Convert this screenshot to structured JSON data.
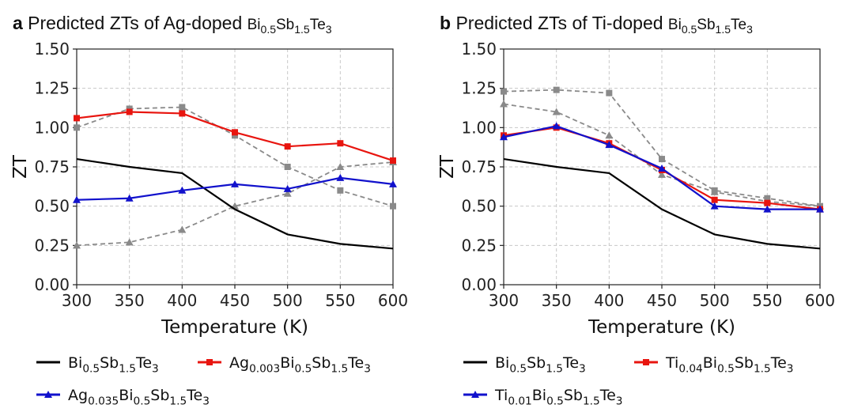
{
  "chart_data": [
    {
      "type": "line",
      "panel": "a",
      "title_prefix": "Predicted ZTs of Ag-doped",
      "title": "Predicted ZTs of Ag-doped Bi0.5Sb1.5Te3",
      "xlabel": "Temperature (K)",
      "ylabel": "ZT",
      "xlim": [
        300,
        600
      ],
      "ylim": [
        0,
        1.5
      ],
      "xticks": [
        "300",
        "350",
        "400",
        "450",
        "500",
        "550",
        "600"
      ],
      "yticks": [
        "0.00",
        "0.25",
        "0.50",
        "0.75",
        "1.00",
        "1.25",
        "1.50"
      ],
      "grid": true,
      "legend_position": "below",
      "series": [
        {
          "name": "Bi0.5Sb1.5Te3",
          "color": "#000000",
          "marker": "none",
          "dashed": false,
          "legend": true,
          "x": [
            300,
            350,
            400,
            450,
            500,
            550,
            600
          ],
          "y": [
            0.8,
            0.75,
            0.71,
            0.48,
            0.32,
            0.26,
            0.23
          ]
        },
        {
          "name": "Ag0.003Bi0.5Sb1.5Te3",
          "color": "#e8150f",
          "marker": "square",
          "dashed": false,
          "legend": true,
          "x": [
            300,
            350,
            400,
            450,
            500,
            550,
            600
          ],
          "y": [
            1.06,
            1.1,
            1.09,
            0.97,
            0.88,
            0.9,
            0.79
          ]
        },
        {
          "name": "Ag0.035Bi0.5Sb1.5Te3",
          "color": "#1111cc",
          "marker": "triangle",
          "dashed": false,
          "legend": true,
          "x": [
            300,
            350,
            400,
            450,
            500,
            550,
            600
          ],
          "y": [
            0.54,
            0.55,
            0.6,
            0.64,
            0.61,
            0.68,
            0.64
          ]
        },
        {
          "color": "#8a8a8a",
          "marker": "square",
          "dashed": true,
          "legend": false,
          "x": [
            300,
            350,
            400,
            450,
            500,
            550,
            600
          ],
          "y": [
            1.0,
            1.12,
            1.13,
            0.95,
            0.75,
            0.6,
            0.5
          ]
        },
        {
          "color": "#8a8a8a",
          "marker": "triangle",
          "dashed": true,
          "legend": false,
          "x": [
            300,
            350,
            400,
            450,
            500,
            550,
            600
          ],
          "y": [
            0.25,
            0.27,
            0.35,
            0.5,
            0.58,
            0.75,
            0.78
          ]
        }
      ]
    },
    {
      "type": "line",
      "panel": "b",
      "title_prefix": "Predicted ZTs of Ti-doped",
      "title": "Predicted ZTs of Ti-doped Bi0.5Sb1.5Te3",
      "xlabel": "Temperature (K)",
      "ylabel": "ZT",
      "xlim": [
        300,
        600
      ],
      "ylim": [
        0,
        1.5
      ],
      "xticks": [
        "300",
        "350",
        "400",
        "450",
        "500",
        "550",
        "600"
      ],
      "yticks": [
        "0.00",
        "0.25",
        "0.50",
        "0.75",
        "1.00",
        "1.25",
        "1.50"
      ],
      "grid": true,
      "legend_position": "below",
      "series": [
        {
          "name": "Bi0.5Sb1.5Te3",
          "color": "#000000",
          "marker": "none",
          "dashed": false,
          "legend": true,
          "x": [
            300,
            350,
            400,
            450,
            500,
            550,
            600
          ],
          "y": [
            0.8,
            0.75,
            0.71,
            0.48,
            0.32,
            0.26,
            0.23
          ]
        },
        {
          "name": "Ti0.04Bi0.5Sb1.5Te3",
          "color": "#e8150f",
          "marker": "square",
          "dashed": false,
          "legend": true,
          "x": [
            300,
            350,
            400,
            450,
            500,
            550,
            600
          ],
          "y": [
            0.95,
            1.0,
            0.9,
            0.73,
            0.54,
            0.52,
            0.48
          ]
        },
        {
          "name": "Ti0.01Bi0.5Sb1.5Te3",
          "color": "#1111cc",
          "marker": "triangle",
          "dashed": false,
          "legend": true,
          "x": [
            300,
            350,
            400,
            450,
            500,
            550,
            600
          ],
          "y": [
            0.94,
            1.01,
            0.89,
            0.74,
            0.5,
            0.48,
            0.48
          ]
        },
        {
          "color": "#8a8a8a",
          "marker": "square",
          "dashed": true,
          "legend": false,
          "x": [
            300,
            350,
            400,
            450,
            500,
            550,
            600
          ],
          "y": [
            1.23,
            1.24,
            1.22,
            0.8,
            0.6,
            0.55,
            0.5
          ]
        },
        {
          "color": "#8a8a8a",
          "marker": "triangle",
          "dashed": true,
          "legend": false,
          "x": [
            300,
            350,
            400,
            450,
            500,
            550,
            600
          ],
          "y": [
            1.15,
            1.1,
            0.95,
            0.7,
            0.59,
            0.53,
            0.5
          ]
        }
      ]
    }
  ],
  "panels": [
    {
      "letter": "a",
      "legend_labels": [
        "Bi0.5Sb1.5Te3",
        "Ag0.003Bi0.5Sb1.5Te3",
        "Ag0.035Bi0.5Sb1.5Te3"
      ]
    },
    {
      "letter": "b",
      "legend_labels": [
        "Bi0.5Sb1.5Te3",
        "Ti0.04Bi0.5Sb1.5Te3",
        "Ti0.01Bi0.5Sb1.5Te3"
      ]
    }
  ]
}
